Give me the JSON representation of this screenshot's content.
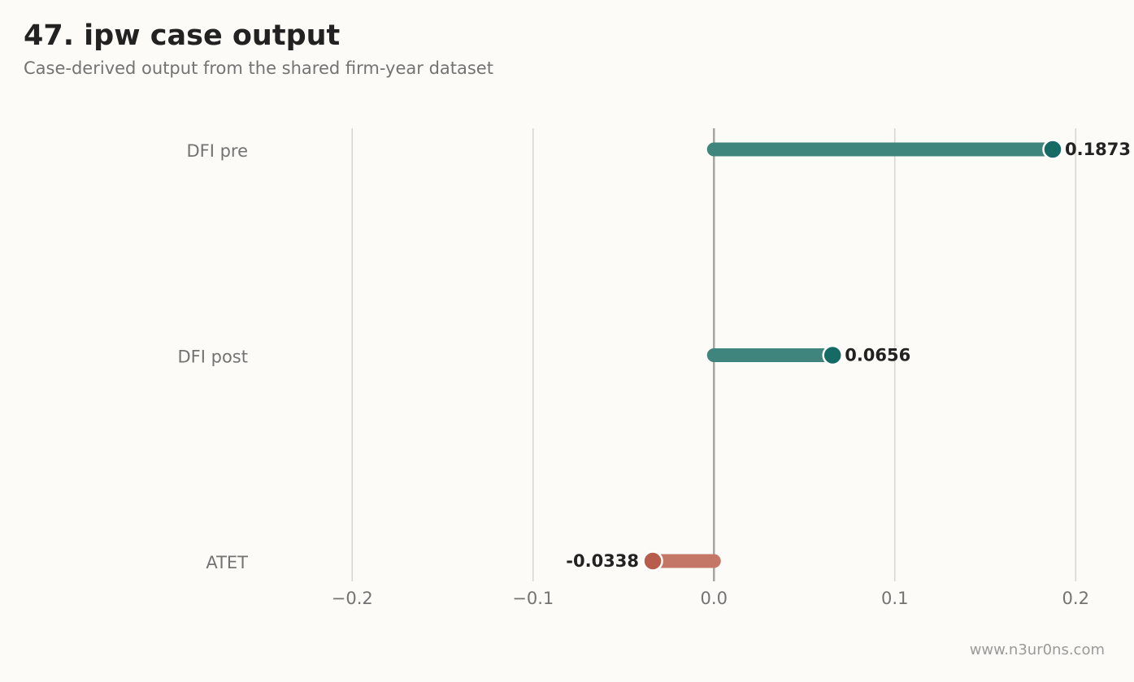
{
  "header": {
    "title": "47. ipw case output",
    "subtitle": "Case-derived output from the shared firm-year dataset"
  },
  "footer": {
    "watermark": "www.n3ur0ns.com"
  },
  "colors": {
    "positive": "#156b63",
    "positive_bar": "#3f847d",
    "negative": "#b85c4b",
    "negative_bar": "#c47767",
    "grid": "#d8d7d2",
    "zero_line": "#a6a6a2"
  },
  "chart_data": {
    "type": "bar",
    "orientation": "horizontal",
    "style": "lollipop",
    "categories": [
      "DFI pre",
      "DFI post",
      "ATET"
    ],
    "values": [
      0.1873,
      0.0656,
      -0.0338
    ],
    "value_labels": [
      "0.1873",
      "0.0656",
      "-0.0338"
    ],
    "xlim": [
      -0.25,
      0.23
    ],
    "xticks": [
      -0.2,
      -0.1,
      0.0,
      0.1,
      0.2
    ],
    "xtick_labels": [
      "−0.2",
      "−0.1",
      "0.0",
      "0.1",
      "0.2"
    ],
    "grid": "vertical",
    "title": "47. ipw case output",
    "subtitle": "Case-derived output from the shared firm-year dataset",
    "xlabel": "",
    "ylabel": ""
  }
}
